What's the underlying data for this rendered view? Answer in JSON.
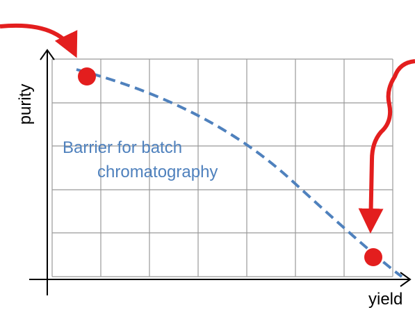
{
  "axes": {
    "y_label": "purity",
    "x_label": "yield"
  },
  "annotation": {
    "lines": [
      "Barrier for batch",
      "chromatography"
    ]
  }
}
